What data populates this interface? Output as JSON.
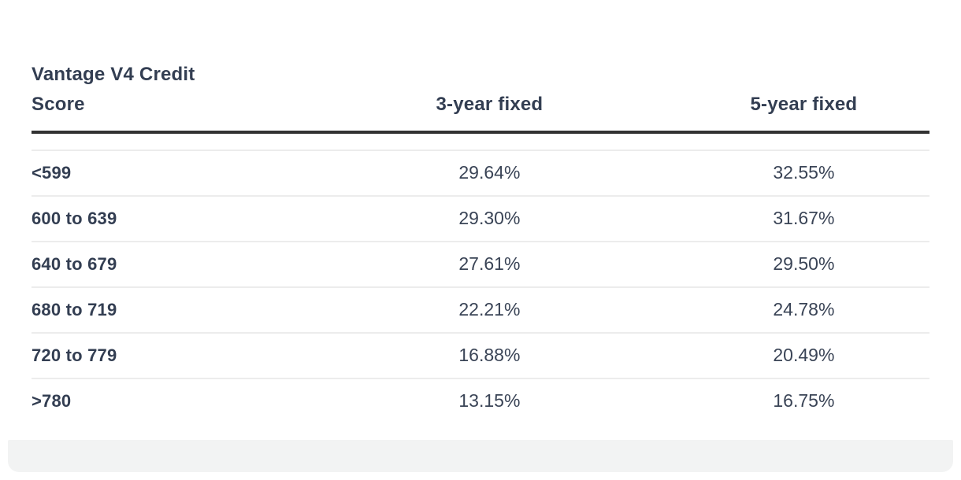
{
  "colors": {
    "text_navy": "#333e52",
    "value_text": "#3a4456",
    "header_rule": "#323232",
    "row_divider": "#ececec",
    "bottom_bar_bg": "#f2f3f3"
  },
  "table": {
    "header": {
      "credit_score": "Vantage V4 Credit Score",
      "three_year": "3-year fixed",
      "five_year": "5-year fixed"
    },
    "rows": [
      {
        "score": "<599",
        "three_year": "29.64%",
        "five_year": "32.55%"
      },
      {
        "score": "600 to 639",
        "three_year": "29.30%",
        "five_year": "31.67%"
      },
      {
        "score": "640 to 679",
        "three_year": "27.61%",
        "five_year": "29.50%"
      },
      {
        "score": "680 to 719",
        "three_year": "22.21%",
        "five_year": "24.78%"
      },
      {
        "score": "720 to 779",
        "three_year": "16.88%",
        "five_year": "20.49%"
      },
      {
        "score": ">780",
        "three_year": "13.15%",
        "five_year": "16.75%"
      }
    ]
  },
  "chart_data": {
    "type": "table",
    "title": "",
    "columns": [
      "Vantage V4 Credit Score",
      "3-year fixed",
      "5-year fixed"
    ],
    "categories": [
      "<599",
      "600 to 639",
      "640 to 679",
      "680 to 719",
      "720 to 779",
      ">780"
    ],
    "series": [
      {
        "name": "3-year fixed",
        "unit": "%",
        "values": [
          29.64,
          29.3,
          27.61,
          22.21,
          16.88,
          13.15
        ]
      },
      {
        "name": "5-year fixed",
        "unit": "%",
        "values": [
          32.55,
          31.67,
          29.5,
          24.78,
          20.49,
          16.75
        ]
      }
    ]
  }
}
